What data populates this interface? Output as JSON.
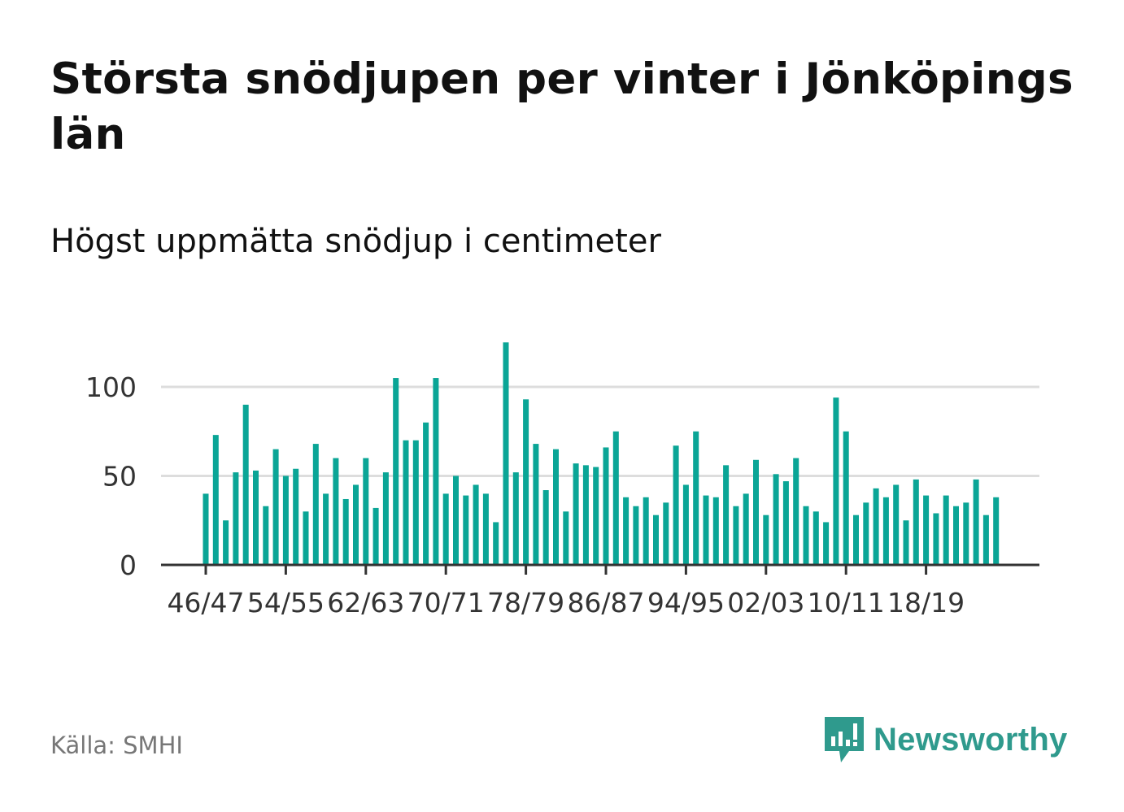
{
  "title": "Största snödjupen per vinter i Jönköpings län",
  "subtitle": "Högst uppmätta snödjup i centimeter",
  "source": "Källa: SMHI",
  "logo": "Newsworthy",
  "colors": {
    "bar": "#0aa596",
    "grid": "#dddddd",
    "axis": "#333333",
    "logo": "#2f9a8d"
  },
  "chart_data": {
    "type": "bar",
    "title": "Största snödjupen per vinter i Jönköpings län",
    "ylabel": "Högst uppmätta snödjup i centimeter",
    "xlabel": "",
    "ylim": [
      0,
      125
    ],
    "yticks": [
      0,
      50,
      100
    ],
    "grid": true,
    "xtick_labels": [
      "46/47",
      "54/55",
      "62/63",
      "70/71",
      "78/79",
      "86/87",
      "94/95",
      "02/03",
      "10/11",
      "18/19"
    ],
    "categories": [
      "46/47",
      "47/48",
      "48/49",
      "49/50",
      "50/51",
      "51/52",
      "52/53",
      "53/54",
      "54/55",
      "55/56",
      "56/57",
      "57/58",
      "58/59",
      "59/60",
      "60/61",
      "61/62",
      "62/63",
      "63/64",
      "64/65",
      "65/66",
      "66/67",
      "67/68",
      "68/69",
      "69/70",
      "70/71",
      "71/72",
      "72/73",
      "73/74",
      "74/75",
      "75/76",
      "76/77",
      "77/78",
      "78/79",
      "79/80",
      "80/81",
      "81/82",
      "82/83",
      "83/84",
      "84/85",
      "85/86",
      "86/87",
      "87/88",
      "88/89",
      "89/90",
      "90/91",
      "91/92",
      "92/93",
      "93/94",
      "94/95",
      "95/96",
      "96/97",
      "97/98",
      "98/99",
      "99/00",
      "00/01",
      "01/02",
      "02/03",
      "03/04",
      "04/05",
      "05/06",
      "06/07",
      "07/08",
      "08/09",
      "09/10",
      "10/11",
      "11/12",
      "12/13",
      "13/14",
      "14/15",
      "15/16",
      "16/17",
      "17/18",
      "18/19",
      "19/20",
      "20/21",
      "21/22",
      "22/23",
      "23/24",
      "24/25",
      "25/26"
    ],
    "values": [
      40,
      73,
      25,
      52,
      90,
      53,
      33,
      65,
      50,
      54,
      30,
      68,
      40,
      60,
      37,
      45,
      60,
      32,
      52,
      105,
      70,
      70,
      80,
      105,
      40,
      50,
      39,
      45,
      40,
      24,
      125,
      52,
      93,
      68,
      42,
      65,
      30,
      57,
      56,
      55,
      66,
      75,
      38,
      33,
      38,
      28,
      35,
      67,
      45,
      75,
      39,
      38,
      56,
      33,
      40,
      59,
      28,
      51,
      47,
      60,
      33,
      30,
      24,
      94,
      75,
      28,
      35,
      43,
      38,
      45,
      25,
      48,
      39,
      29,
      39,
      33,
      35,
      48,
      28,
      38
    ]
  }
}
